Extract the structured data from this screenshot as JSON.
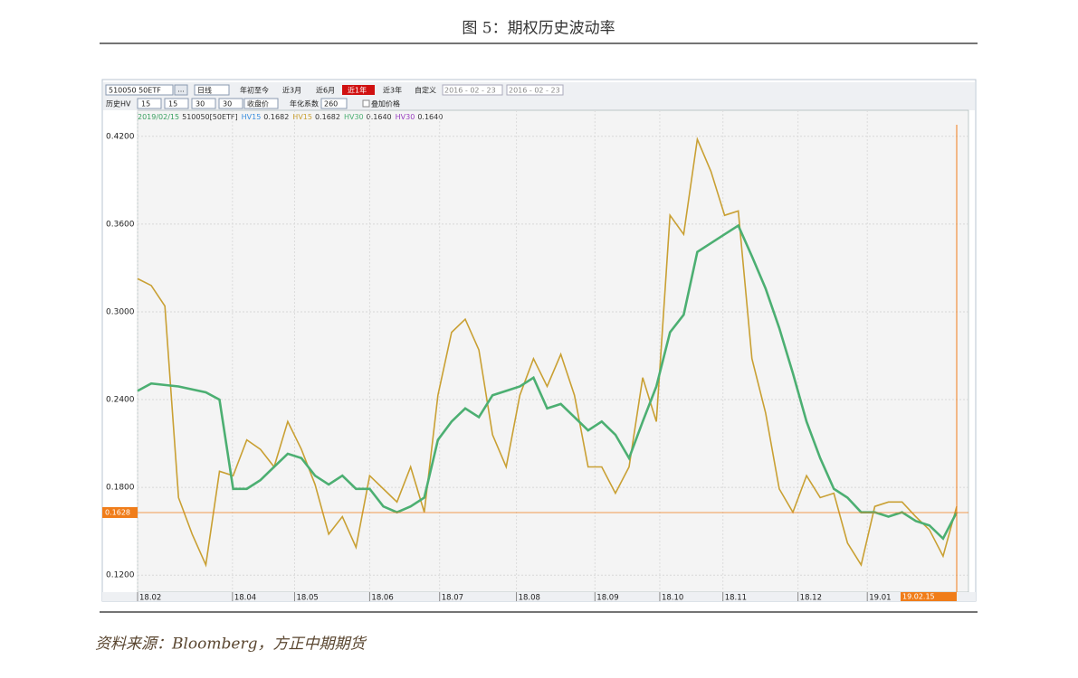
{
  "header": {
    "title": "图 5：期权历史波动率"
  },
  "toolbar": {
    "code": "510050  50ETF",
    "more": "...",
    "period": "日线",
    "ranges": [
      "年初至今",
      "近3月",
      "近6月",
      "近1年",
      "近3年",
      "自定义"
    ],
    "active_range": 3,
    "date_from": "2016 - 02 - 23",
    "date_to": "2016 - 02 - 23",
    "hv_label": "历史HV",
    "windows": [
      "15",
      "15",
      "30",
      "30"
    ],
    "price_type": "收盘价",
    "annual_label": "年化系数",
    "annual_value": "260",
    "overlay_label": "叠加价格"
  },
  "chart_data": {
    "type": "line",
    "status_date": "2019/02/15",
    "status_code": "510050[50ETF]",
    "reference_series": [
      {
        "name": "HV15",
        "color": "#3b8ede",
        "current": "0.1682"
      },
      {
        "name": "HV30",
        "color": "#9a40c0",
        "current": "0.1640"
      }
    ],
    "x": [
      0,
      4,
      8,
      12,
      16,
      20,
      24,
      28,
      32,
      36,
      40,
      44,
      48,
      52,
      56,
      60,
      64,
      68,
      72,
      76,
      80,
      84,
      88,
      92,
      96,
      100,
      104,
      108,
      112,
      116,
      120,
      124,
      128,
      132,
      136,
      140,
      144,
      148,
      152,
      156,
      160,
      164,
      168,
      172,
      176,
      180,
      184,
      188,
      192,
      196,
      200,
      204,
      208,
      212,
      216,
      220,
      224,
      228,
      232,
      236,
      240
    ],
    "series": [
      {
        "name": "HV15",
        "color": "#c9a033",
        "current": "0.1682",
        "values": [
          0.3227,
          0.318,
          0.304,
          0.173,
          0.148,
          0.127,
          0.191,
          0.188,
          0.2125,
          0.206,
          0.194,
          0.225,
          0.206,
          0.182,
          0.148,
          0.16,
          0.139,
          0.188,
          0.179,
          0.17,
          0.194,
          0.163,
          0.243,
          0.286,
          0.295,
          0.274,
          0.216,
          0.194,
          0.243,
          0.268,
          0.249,
          0.271,
          0.243,
          0.194,
          0.194,
          0.176,
          0.194,
          0.255,
          0.225,
          0.366,
          0.353,
          0.418,
          0.396,
          0.366,
          0.369,
          0.268,
          0.231,
          0.179,
          0.163,
          0.188,
          0.173,
          0.176,
          0.142,
          0.127,
          0.167,
          0.17,
          0.17,
          0.16,
          0.151,
          0.133,
          0.167
        ]
      },
      {
        "name": "HV30",
        "color": "#4caf72",
        "current": "0.1640",
        "values": [
          0.246,
          0.251,
          0.25,
          0.249,
          0.247,
          0.245,
          0.24,
          0.179,
          0.179,
          0.185,
          0.194,
          0.203,
          0.2,
          0.188,
          0.182,
          0.188,
          0.179,
          0.179,
          0.167,
          0.163,
          0.167,
          0.173,
          0.2125,
          0.225,
          0.234,
          0.228,
          0.243,
          0.246,
          0.249,
          0.255,
          0.234,
          0.237,
          0.228,
          0.219,
          0.225,
          0.216,
          0.2,
          0.225,
          0.249,
          0.286,
          0.298,
          0.341,
          0.347,
          0.353,
          0.359,
          0.338,
          0.316,
          0.289,
          0.258,
          0.225,
          0.2,
          0.179,
          0.173,
          0.163,
          0.163,
          0.16,
          0.163,
          0.157,
          0.154,
          0.145,
          0.163
        ]
      }
    ],
    "xlim": [
      0,
      240
    ],
    "xticks": [
      {
        "value": 0,
        "label": "18.02"
      },
      {
        "value": 27.8,
        "label": "18.04"
      },
      {
        "value": 46,
        "label": "18.05"
      },
      {
        "value": 68,
        "label": "18.06"
      },
      {
        "value": 88.5,
        "label": "18.07"
      },
      {
        "value": 111,
        "label": "18.08"
      },
      {
        "value": 134,
        "label": "18.09"
      },
      {
        "value": 153,
        "label": "18.10"
      },
      {
        "value": 171.5,
        "label": "18.11"
      },
      {
        "value": 193.5,
        "label": "18.12"
      },
      {
        "value": 213.8,
        "label": "19.01"
      }
    ],
    "ylim": [
      0.1084,
      0.4378
    ],
    "yticks": [
      {
        "value": 0.12,
        "label": "0.1200"
      },
      {
        "value": 0.18,
        "label": "0.1800"
      },
      {
        "value": 0.24,
        "label": "0.2400"
      },
      {
        "value": 0.3,
        "label": "0.3000"
      },
      {
        "value": 0.36,
        "label": "0.3600"
      },
      {
        "value": 0.42,
        "label": "0.4200"
      }
    ],
    "grid": true,
    "current_value": 0.1628,
    "cursor_label": "19.02.15",
    "cursor_color": "#f07d1a"
  },
  "footer": {
    "source": "资料来源：Bloomberg，方正中期期货"
  }
}
